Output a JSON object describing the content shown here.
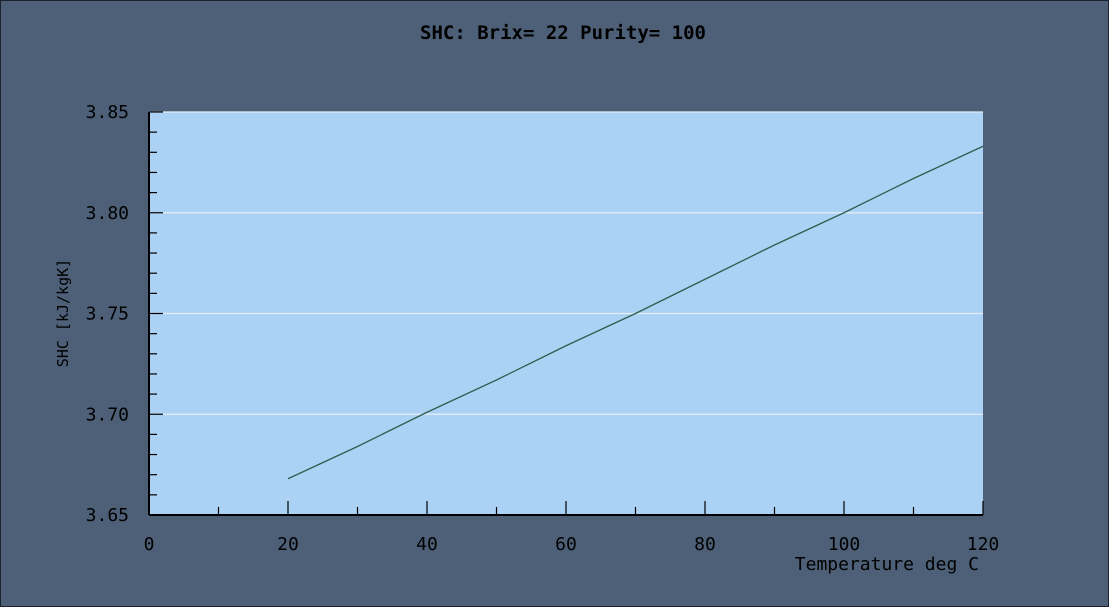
{
  "chart_data": {
    "type": "line",
    "title": "SHC: Brix= 22 Purity= 100",
    "xlabel": "Temperature deg C",
    "ylabel": "SHC [kJ/kgK]",
    "xlim": [
      0,
      120
    ],
    "ylim": [
      3.65,
      3.85
    ],
    "x_ticks": [
      0,
      20,
      40,
      60,
      80,
      100,
      120
    ],
    "x_tick_labels": [
      "0",
      "20",
      "40",
      "60",
      "80",
      "100",
      "120"
    ],
    "y_ticks": [
      3.65,
      3.7,
      3.75,
      3.8,
      3.85
    ],
    "y_tick_labels": [
      "3.65",
      "3.70",
      "3.75",
      "3.80",
      "3.85"
    ],
    "grid": "horizontal",
    "legend": "none",
    "series": [
      {
        "color": "#2e5e4e",
        "x": [
          20,
          30,
          40,
          50,
          60,
          70,
          80,
          90,
          100,
          110,
          120
        ],
        "y": [
          3.668,
          3.684,
          3.701,
          3.717,
          3.734,
          3.75,
          3.767,
          3.784,
          3.8,
          3.817,
          3.833
        ]
      }
    ],
    "colors": {
      "background": "#4d6078",
      "plot_area": "#abd1f4",
      "grid": "#e6eef6",
      "axis": "#000000"
    }
  }
}
